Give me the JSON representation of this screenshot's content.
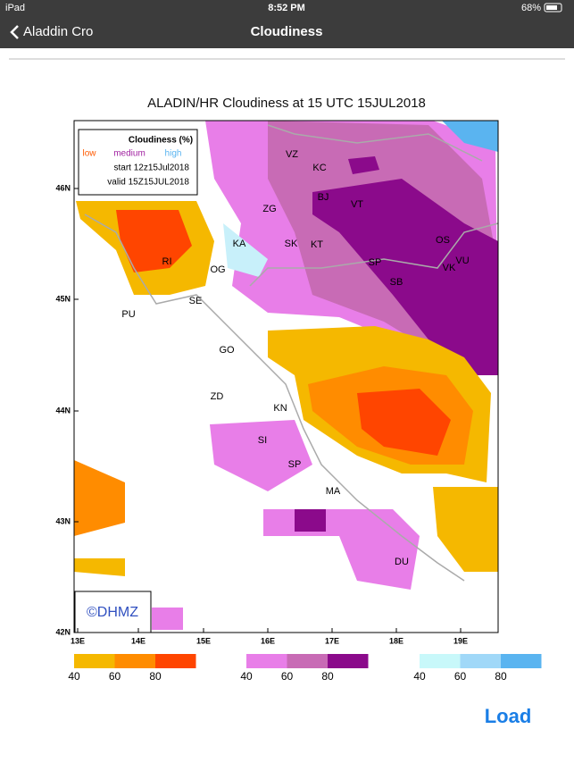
{
  "status_bar": {
    "device": "iPad",
    "time": "8:52 PM",
    "battery": "68%"
  },
  "nav": {
    "back": "Aladdin Cro",
    "title": "Cloudiness"
  },
  "map": {
    "title": "ALADIN/HR Cloudiness at 15 UTC 15JUL2018",
    "legend": {
      "title": "Cloudiness (%)",
      "low": "low",
      "medium": "medium",
      "high": "high",
      "start": "start 12z15Jul2018",
      "valid": "valid 15Z15JUL2018"
    },
    "places": [
      "VZ",
      "KC",
      "BJ",
      "VT",
      "ZG",
      "KA",
      "SK",
      "KT",
      "OS",
      "VK",
      "VU",
      "SP",
      "SB",
      "RI",
      "OG",
      "SE",
      "PU",
      "GO",
      "ZD",
      "KN",
      "SI",
      "SP",
      "MA",
      "DU"
    ],
    "lat_labels": [
      "46N",
      "45N",
      "44N",
      "43N",
      "42N"
    ],
    "lon_labels": [
      "13E",
      "14E",
      "15E",
      "16E",
      "17E",
      "18E",
      "19E"
    ],
    "credit": "©DHMZ",
    "colorbars": [
      {
        "labels": [
          40,
          60,
          80
        ]
      },
      {
        "labels": [
          40,
          60,
          80
        ]
      },
      {
        "labels": [
          40,
          60,
          80
        ]
      }
    ]
  },
  "button": "Load"
}
